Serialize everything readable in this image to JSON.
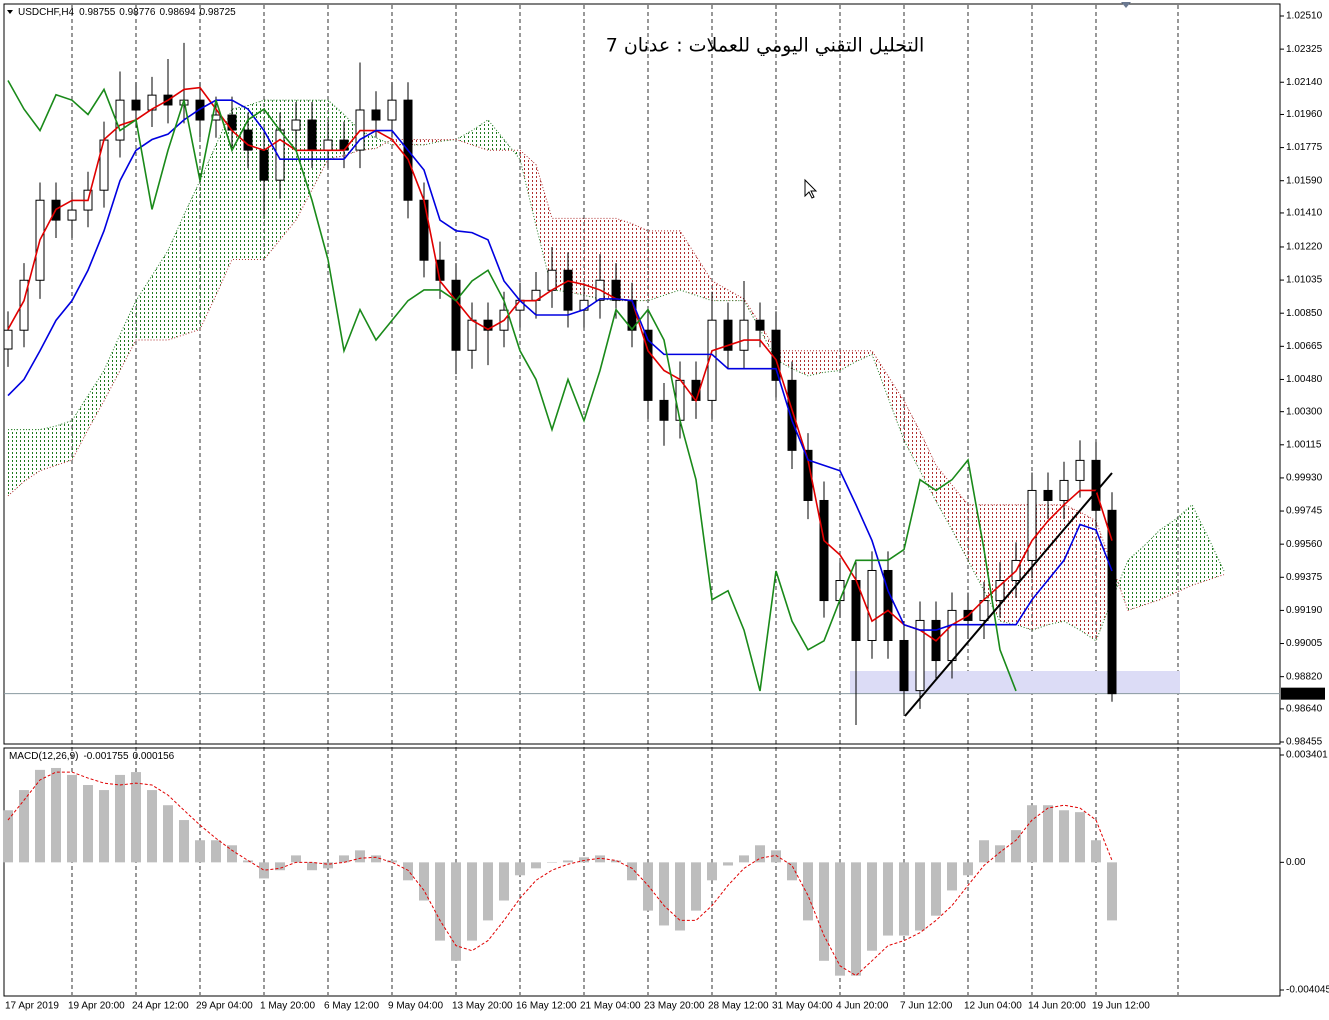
{
  "chart_data": [
    {
      "type": "candlestick",
      "symbol": "USDCHF,H4",
      "ohlc_last": [
        0.98755,
        0.98776,
        0.98694,
        0.98725
      ],
      "title": "التحليل التقني اليومي للعملات : عدنان 7",
      "title_color": "#1e3cff",
      "categories": [
        "17 Apr 2019",
        null,
        null,
        null,
        "19 Apr 20:00",
        null,
        null,
        null,
        "24 Apr 12:00",
        null,
        null,
        null,
        "29 Apr 04:00",
        null,
        null,
        null,
        "1 May 20:00",
        null,
        null,
        null,
        "6 May 12:00",
        null,
        null,
        null,
        "9 May 04:00",
        null,
        null,
        null,
        "13 May 20:00",
        null,
        null,
        null,
        "16 May 12:00",
        null,
        null,
        null,
        "21 May 04:00",
        null,
        null,
        null,
        "23 May 20:00",
        null,
        null,
        null,
        "28 May 12:00",
        null,
        null,
        null,
        "31 May 04:00",
        null,
        null,
        null,
        "4 Jun 20:00",
        null,
        null,
        null,
        "7 Jun 12:00",
        null,
        null,
        null,
        "12 Jun 04:00",
        null,
        null,
        null,
        "14 Jun 20:00",
        null,
        null,
        null,
        "19 Jun 12:00",
        null,
        null,
        null,
        null,
        null,
        null,
        null,
        null
      ],
      "open": [
        1.0065,
        1.00755,
        1.01034,
        1.01481,
        1.0137,
        1.01426,
        1.01537,
        1.01817,
        1.0204,
        1.01985,
        1.02068,
        1.02013,
        1.0204,
        1.01929,
        1.01957,
        1.01873,
        1.01761,
        1.01593,
        1.01873,
        1.01929,
        1.01761,
        1.01817,
        1.01761,
        1.01985,
        1.01929,
        1.0204,
        1.01481,
        1.01146,
        1.01034,
        1.00643,
        1.00811,
        1.00755,
        1.00867,
        1.00922,
        1.00978,
        1.0109,
        1.00867,
        1.00922,
        1.01034,
        1.00922,
        1.00755,
        1.00363,
        1.00252,
        1.00475,
        1.00363,
        1.00811,
        1.00643,
        1.00811,
        1.00755,
        1.00475,
        1.00084,
        0.99804,
        0.99245,
        0.99357,
        0.99022,
        0.99413,
        0.99022,
        0.98742,
        0.99134,
        0.9891,
        0.9919,
        0.99134,
        0.99245,
        0.99357,
        0.99469,
        0.9986,
        0.99804,
        0.99916,
        1.00028,
        0.99749,
        null,
        null,
        null,
        null,
        null,
        null,
        null
      ],
      "high": [
        1.0086,
        1.0113,
        1.0158,
        1.0158,
        1.0153,
        1.0164,
        1.0192,
        1.022,
        1.0214,
        1.0217,
        1.0227,
        1.0236,
        1.0214,
        1.0206,
        1.0206,
        1.0197,
        1.0186,
        1.0197,
        1.0203,
        1.0203,
        1.0192,
        1.0192,
        1.0225,
        1.0209,
        1.0214,
        1.0214,
        1.0158,
        1.0125,
        1.0113,
        1.0091,
        1.0091,
        1.0097,
        1.0102,
        1.0108,
        1.0122,
        1.0119,
        1.0102,
        1.0118,
        1.0113,
        1.0102,
        1.0086,
        1.0046,
        1.0058,
        1.0058,
        1.0097,
        1.0091,
        1.0103,
        1.0091,
        1.0086,
        1.0058,
        1.0018,
        0.9991,
        0.9946,
        0.9946,
        0.9952,
        0.9952,
        0.9913,
        0.9924,
        0.9924,
        0.9929,
        0.9929,
        0.9935,
        0.9946,
        0.9957,
        0.9996,
        0.9996,
        1.0002,
        1.0014,
        1.0013,
        0.9985,
        null,
        null,
        null,
        null,
        null,
        null,
        null
      ],
      "low": [
        1.0055,
        1.0066,
        1.0093,
        1.0127,
        1.0127,
        1.0133,
        1.0144,
        1.0172,
        1.0189,
        1.0189,
        1.0191,
        1.0191,
        1.0183,
        1.0183,
        1.0177,
        1.0166,
        1.014,
        1.0149,
        1.0177,
        1.0166,
        1.0166,
        1.0166,
        1.0166,
        1.0183,
        1.0183,
        1.0138,
        1.0105,
        1.0093,
        1.0051,
        1.0054,
        1.0056,
        1.0066,
        1.0077,
        1.0082,
        1.0088,
        1.0077,
        1.0077,
        1.0082,
        1.0082,
        1.0066,
        1.0026,
        1.0011,
        1.0015,
        1.0026,
        1.0026,
        1.0054,
        1.0054,
        1.0066,
        1.0038,
        0.9998,
        0.997,
        0.9915,
        0.9915,
        0.9855,
        0.9892,
        0.9892,
        0.9861,
        0.9864,
        0.9881,
        0.9881,
        0.9903,
        0.9903,
        0.9915,
        0.9926,
        0.9937,
        0.997,
        0.997,
        0.9982,
        0.9965,
        0.9868,
        null,
        null,
        null,
        null,
        null,
        null,
        null
      ],
      "close": [
        1.00755,
        1.01034,
        1.01481,
        1.0137,
        1.01426,
        1.01537,
        1.01817,
        1.0204,
        1.01985,
        1.02068,
        1.02013,
        1.0204,
        1.01929,
        1.01957,
        1.01873,
        1.01761,
        1.01593,
        1.01873,
        1.01929,
        1.01761,
        1.01817,
        1.01761,
        1.01985,
        1.01929,
        1.0204,
        1.01481,
        1.01146,
        1.01034,
        1.00643,
        1.00811,
        1.00755,
        1.00867,
        1.00922,
        1.00978,
        1.0109,
        1.00867,
        1.00922,
        1.01034,
        1.00922,
        1.00755,
        1.00363,
        1.00252,
        1.00475,
        1.00363,
        1.00811,
        1.00643,
        1.00811,
        1.00755,
        1.00475,
        1.00084,
        0.99804,
        0.99245,
        0.99357,
        0.99022,
        0.99413,
        0.99022,
        0.98742,
        0.99134,
        0.9891,
        0.9919,
        0.99134,
        0.99245,
        0.99357,
        0.99469,
        0.9986,
        0.99804,
        0.99916,
        1.00028,
        0.99749,
        0.98725,
        null,
        null,
        null,
        null,
        null,
        null,
        null
      ],
      "color_up": "#ffffff",
      "color_down": "#000000",
      "cloud": {
        "color_up": "#1f7a1f",
        "color_down": "#b03030",
        "span_a": [
          1.002,
          1.002,
          1.002,
          1.0022,
          1.0025,
          1.0039,
          1.0053,
          1.0073,
          1.0092,
          1.0106,
          1.012,
          1.014,
          1.0159,
          1.0179,
          1.0199,
          1.0201,
          1.0204,
          1.0204,
          1.0204,
          1.0204,
          1.0204,
          1.0196,
          1.0187,
          1.0183,
          1.0179,
          1.0179,
          1.0179,
          1.0181,
          1.0182,
          1.0187,
          1.0193,
          1.0182,
          1.0171,
          1.0134,
          1.0098,
          1.0097,
          1.0095,
          1.0093,
          1.0092,
          1.0092,
          1.0092,
          1.0095,
          1.0098,
          1.0095,
          1.0092,
          1.0092,
          1.0092,
          1.0076,
          1.0059,
          1.0054,
          1.005,
          1.0052,
          1.0053,
          1.0058,
          1.0062,
          1.0038,
          1.0014,
          0.9997,
          0.998,
          0.9964,
          0.9947,
          0.993,
          0.9913,
          0.9911,
          0.9908,
          0.9911,
          0.9913,
          0.9908,
          0.9902,
          0.9925,
          0.9947,
          0.9955,
          0.9964,
          0.997,
          0.9978,
          0.996,
          0.9941
        ],
        "span_b": [
          0.9983,
          0.9991,
          0.9997,
          1.0,
          1.0003,
          1.002,
          1.0036,
          1.0053,
          1.007,
          1.007,
          1.007,
          1.0073,
          1.0076,
          1.0095,
          1.0115,
          1.0115,
          1.0115,
          1.0126,
          1.0137,
          1.0154,
          1.0171,
          1.0173,
          1.0176,
          1.0177,
          1.0182,
          1.0182,
          1.0182,
          1.0182,
          1.0182,
          1.0179,
          1.0176,
          1.0176,
          1.0176,
          1.0168,
          1.0138,
          1.0138,
          1.0138,
          1.0138,
          1.0138,
          1.0135,
          1.0131,
          1.0131,
          1.0131,
          1.0117,
          1.0103,
          1.0098,
          1.0093,
          1.0079,
          1.0064,
          1.0064,
          1.0064,
          1.0064,
          1.0064,
          1.0064,
          1.0064,
          1.005,
          1.0036,
          1.0019,
          1.0,
          0.9989,
          0.9978,
          0.9978,
          0.9978,
          0.9978,
          0.9978,
          0.9978,
          0.9978,
          0.9974,
          0.9969,
          0.9944,
          0.9919,
          0.9922,
          0.9925,
          0.9929,
          0.9933,
          0.9936,
          0.9939
        ]
      },
      "lines": [
        {
          "color": "#e00000",
          "values": [
            1.0076,
            1.0092,
            1.0126,
            1.0143,
            1.0148,
            1.0148,
            1.0182,
            1.019,
            1.0193,
            1.0199,
            1.0204,
            1.021,
            1.0211,
            1.0199,
            1.0187,
            1.0179,
            1.0176,
            1.0182,
            1.0176,
            1.0176,
            1.0176,
            1.0176,
            1.0187,
            1.0187,
            1.0182,
            1.0171,
            1.0148,
            1.0103,
            1.0092,
            1.0081,
            1.0076,
            1.0081,
            1.0092,
            1.0092,
            1.0098,
            1.0103,
            1.0101,
            1.0098,
            1.0093,
            1.0092,
            1.0064,
            1.0053,
            1.0048,
            1.0036,
            1.0064,
            1.0067,
            1.007,
            1.007,
            1.0059,
            1.0031,
            1.0003,
            0.9958,
            0.995,
            0.9936,
            0.9913,
            0.9919,
            0.9911,
            0.9908,
            0.9902,
            0.9911,
            0.9916,
            0.9925,
            0.9933,
            0.9941,
            0.9958,
            0.9969,
            0.9978,
            0.9986,
            0.9986,
            0.9958,
            null,
            null,
            null,
            null,
            null,
            null,
            null
          ]
        },
        {
          "color": "#0000e0",
          "values": [
            1.0039,
            1.0048,
            1.0064,
            1.0081,
            1.0092,
            1.0109,
            1.0131,
            1.0159,
            1.0176,
            1.0182,
            1.0185,
            1.0193,
            1.0199,
            1.0204,
            1.0204,
            1.0199,
            1.0187,
            1.0171,
            1.0171,
            1.0171,
            1.0171,
            1.0171,
            1.0182,
            1.0187,
            1.0187,
            1.0176,
            1.0165,
            1.0137,
            1.0131,
            1.013,
            1.0126,
            1.0103,
            1.0092,
            1.0084,
            1.0084,
            1.0084,
            1.0087,
            1.0093,
            1.0093,
            1.0092,
            1.007,
            1.0062,
            1.0062,
            1.0062,
            1.0062,
            1.0054,
            1.0054,
            1.0054,
            1.0054,
            1.0025,
            1.0003,
            1.0,
            0.9997,
            0.9978,
            0.9958,
            0.993,
            0.9911,
            0.9908,
            0.9908,
            0.9911,
            0.9911,
            0.9911,
            0.9911,
            0.9911,
            0.9925,
            0.9936,
            0.9947,
            0.9967,
            0.9964,
            0.9941,
            null,
            null,
            null,
            null,
            null,
            null,
            null
          ]
        },
        {
          "color": "#1a8a1a",
          "values": [
            1.0215,
            1.0199,
            1.0187,
            1.0207,
            1.0204,
            1.0196,
            1.021,
            1.0187,
            1.0193,
            1.0143,
            1.0176,
            1.0204,
            1.0159,
            1.0204,
            1.0176,
            1.0193,
            1.0199,
            1.0187,
            1.0176,
            1.0148,
            1.0115,
            1.0064,
            1.0087,
            1.007,
            1.0081,
            1.0092,
            1.0098,
            1.0098,
            1.0092,
            1.0103,
            1.0109,
            1.0092,
            1.0064,
            1.0048,
            1.002,
            1.0048,
            1.0025,
            1.0053,
            1.0087,
            1.0076,
            1.0087,
            1.007,
            1.0025,
            0.9992,
            0.9925,
            0.993,
            0.9908,
            0.9874,
            0.9941,
            0.9913,
            0.9897,
            0.9902,
            0.9925,
            0.9947,
            0.9947,
            0.9947,
            0.9953,
            0.9992,
            0.9986,
            0.9992,
            1.0003,
            0.9953,
            0.9897,
            0.9874,
            null,
            null,
            null,
            null,
            null,
            null,
            null,
            null,
            null,
            null,
            null,
            null,
            null
          ]
        }
      ],
      "current_price": 0.98725,
      "ylim": [
        0.98455,
        1.0251
      ],
      "yticks": [
        {
          "value": 1.0251,
          "label": "1.02510"
        },
        {
          "value": 1.02325,
          "label": "1.02325"
        },
        {
          "value": 1.0214,
          "label": "1.02140"
        },
        {
          "value": 1.0196,
          "label": "1.01960"
        },
        {
          "value": 1.01775,
          "label": "1.01775"
        },
        {
          "value": 1.0159,
          "label": "1.01590"
        },
        {
          "value": 1.0141,
          "label": "1.01410"
        },
        {
          "value": 1.0122,
          "label": "1.01220"
        },
        {
          "value": 1.01035,
          "label": "1.01035"
        },
        {
          "value": 1.0085,
          "label": "1.00850"
        },
        {
          "value": 1.00665,
          "label": "1.00665"
        },
        {
          "value": 1.0048,
          "label": "1.00480"
        },
        {
          "value": 1.003,
          "label": "1.00300"
        },
        {
          "value": 1.00115,
          "label": "1.00115"
        },
        {
          "value": 0.9993,
          "label": "0.99930"
        },
        {
          "value": 0.99745,
          "label": "0.99745"
        },
        {
          "value": 0.9956,
          "label": "0.99560"
        },
        {
          "value": 0.99375,
          "label": "0.99375"
        },
        {
          "value": 0.9919,
          "label": "0.99190"
        },
        {
          "value": 0.99005,
          "label": "0.99005"
        },
        {
          "value": 0.9882,
          "label": "0.98820"
        },
        {
          "value": 0.9864,
          "label": "0.98640"
        },
        {
          "value": 0.98455,
          "label": "0.98455"
        }
      ]
    },
    {
      "type": "macd",
      "title": "MACD(12,26,9)",
      "last_values": [
        -0.001755,
        0.000156
      ],
      "histogram": {
        "color": "#bdbdbd",
        "values": [
          0.00165,
          0.00229,
          0.00293,
          0.00299,
          0.00277,
          0.00245,
          0.00229,
          0.00277,
          0.00286,
          0.00229,
          0.00181,
          0.00134,
          0.0007,
          0.0007,
          0.00054,
          6e-05,
          -0.00051,
          -0.00025,
          0.00022,
          -0.00025,
          -0.00019,
          0.00022,
          0.00038,
          0.00022,
          6e-05,
          -0.00057,
          -0.00121,
          -0.00248,
          -0.00312,
          -0.00248,
          -0.00184,
          -0.00121,
          -0.00041,
          -0.00019,
          0,
          6e-05,
          0.00016,
          0.00022,
          6e-05,
          -0.00057,
          -0.00153,
          -0.002,
          -0.00216,
          -0.00153,
          -0.00057,
          -0.0001,
          0.00022,
          0.00054,
          0.00038,
          -0.00057,
          -0.00184,
          -0.00312,
          -0.00359,
          -0.00359,
          -0.0028,
          -0.00232,
          -0.00232,
          -0.00216,
          -0.00169,
          -0.00089,
          -0.00041,
          0.0007,
          0.00054,
          0.00102,
          0.00181,
          0.00181,
          0.00165,
          0.00159,
          0.0007,
          -0.00184
        ]
      },
      "signal": {
        "color": "#e00000",
        "values": [
          0.00134,
          0.00197,
          0.00261,
          0.00286,
          0.00286,
          0.00267,
          0.00251,
          0.00245,
          0.00251,
          0.00245,
          0.00213,
          0.00165,
          0.00118,
          0.00076,
          0.00038,
          6e-05,
          -0.00025,
          -0.00019,
          0,
          0,
          -6e-05,
          0,
          0.00013,
          0.00016,
          0,
          -0.00025,
          -0.00089,
          -0.00184,
          -0.00264,
          -0.0028,
          -0.00248,
          -0.00184,
          -0.00114,
          -0.00057,
          -0.00025,
          -6e-05,
          6e-05,
          0.00013,
          6e-05,
          -0.00019,
          -0.00073,
          -0.00137,
          -0.00184,
          -0.00184,
          -0.00137,
          -0.00073,
          -0.00019,
          0.00013,
          0.00022,
          -0.0001,
          -0.00105,
          -0.00232,
          -0.00328,
          -0.00359,
          -0.00312,
          -0.00264,
          -0.00248,
          -0.00223,
          -0.00184,
          -0.00137,
          -0.00073,
          -0.0001,
          0.00032,
          0.0007,
          0.00134,
          0.00172,
          0.00181,
          0.00172,
          0.00134,
          6e-05
        ]
      },
      "ylim": [
        -0.004045,
        0.003401
      ],
      "yticks": [
        0.003401,
        {
          "value": 0,
          "label": "0.00"
        },
        -0.004045
      ]
    }
  ]
}
